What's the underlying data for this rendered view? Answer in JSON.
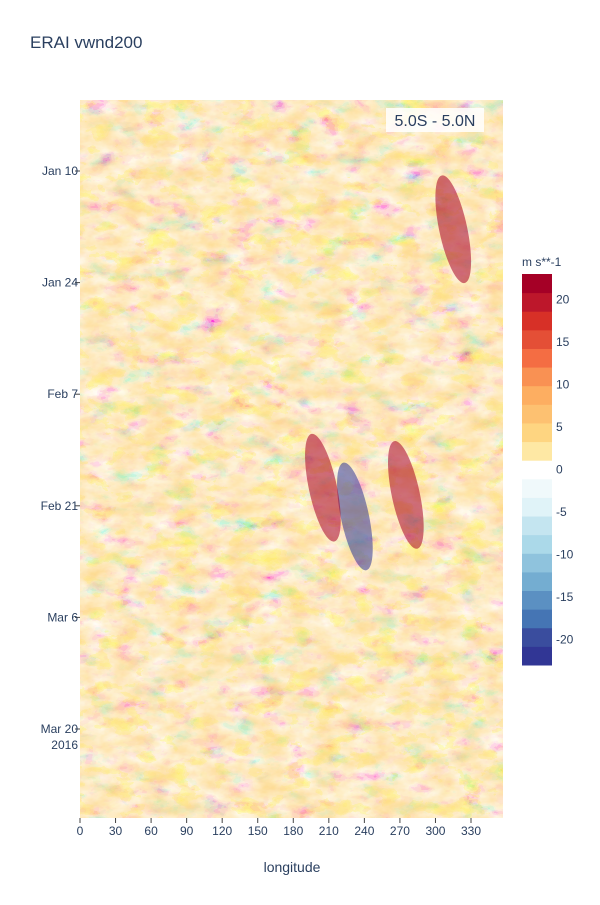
{
  "chart_data": {
    "type": "heatmap",
    "title": "ERAI vwnd200",
    "xlabel": "longitude",
    "ylabel": "",
    "xlim": [
      0,
      357
    ],
    "x_ticks": [
      0,
      30,
      60,
      90,
      120,
      150,
      180,
      210,
      240,
      270,
      300,
      330
    ],
    "y_ticks": [
      "Jan 10",
      "Jan 24",
      "Feb 7",
      "Feb 21",
      "Mar 6",
      "Mar 20"
    ],
    "y_year_label": "2016",
    "annotation": "5.0S - 5.0N",
    "colorbar": {
      "title": "m s**-1",
      "range": [
        -23,
        23
      ],
      "ticks": [
        20,
        15,
        10,
        5,
        0,
        -5,
        -10,
        -15,
        -20
      ],
      "colors": [
        "#313695",
        "#4575b4",
        "#74add1",
        "#abd9e9",
        "#e0f3f8",
        "#ffffff",
        "#fee090",
        "#fdae61",
        "#f46d43",
        "#d73027",
        "#a50026"
      ]
    },
    "features": [
      {
        "lon": 232,
        "date_frac": 0.58,
        "value": -22
      },
      {
        "lon": 275,
        "date_frac": 0.55,
        "value": 22
      },
      {
        "lon": 315,
        "date_frac": 0.18,
        "value": 22
      },
      {
        "lon": 205,
        "date_frac": 0.54,
        "value": 20
      }
    ]
  }
}
